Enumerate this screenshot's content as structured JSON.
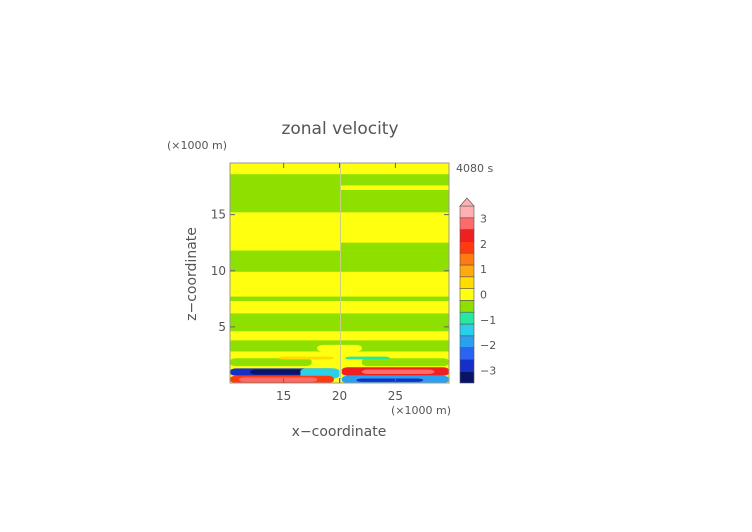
{
  "chart_data": {
    "type": "heatmap",
    "title": "zonal velocity",
    "xlabel": "x−coordinate",
    "ylabel": "z−coordinate",
    "x_unit": "(×1000 m)",
    "y_unit": "(×1000 m)",
    "time_label": "4080 s",
    "xlim": [
      10.2,
      29.8
    ],
    "ylim": [
      0,
      19.6
    ],
    "x_ticks": [
      {
        "value": 15,
        "label": "15"
      },
      {
        "value": 20,
        "label": "20"
      },
      {
        "value": 25,
        "label": "25"
      }
    ],
    "y_ticks": [
      {
        "value": 5,
        "label": "5"
      },
      {
        "value": 10,
        "label": "10"
      },
      {
        "value": 15,
        "label": "15"
      }
    ],
    "colorbar": {
      "min": -3.5,
      "max": 3.5,
      "step": 0.5,
      "extend_max": true,
      "colors": [
        "#0a1466",
        "#1430c8",
        "#2a64f0",
        "#2aa0f0",
        "#2ad0e8",
        "#28e8a0",
        "#8ee000",
        "#ffff10",
        "#ffdd00",
        "#ffaa10",
        "#ff7a10",
        "#ff3a10",
        "#ee2020",
        "#ff6a6a",
        "#ffb0b0"
      ],
      "ticks": [
        {
          "value": 3,
          "label": "3"
        },
        {
          "value": 2,
          "label": "2"
        },
        {
          "value": 1,
          "label": "1"
        },
        {
          "value": 0,
          "label": "0"
        },
        {
          "value": -1,
          "label": "−1"
        },
        {
          "value": -2,
          "label": "−2"
        },
        {
          "value": -3,
          "label": "−3"
        }
      ]
    },
    "bands": [
      {
        "z0": 18.6,
        "z1": 19.6,
        "v": 0.25
      },
      {
        "z0": 17.6,
        "z1": 18.6,
        "v": -0.25
      },
      {
        "z0": 17.2,
        "z1": 17.6,
        "v": 0.25,
        "side": "right"
      },
      {
        "z0": 15.2,
        "z1": 17.6,
        "v": -0.25,
        "side": "left"
      },
      {
        "z0": 15.2,
        "z1": 17.2,
        "v": -0.25,
        "side": "right"
      },
      {
        "z0": 12.5,
        "z1": 15.2,
        "v": 0.25
      },
      {
        "z0": 11.8,
        "z1": 12.5,
        "v": 0.25,
        "side": "left"
      },
      {
        "z0": 11.8,
        "z1": 12.5,
        "v": -0.25,
        "side": "right"
      },
      {
        "z0": 9.9,
        "z1": 11.8,
        "v": -0.25
      },
      {
        "z0": 7.7,
        "z1": 9.9,
        "v": 0.25
      },
      {
        "z0": 7.3,
        "z1": 7.7,
        "v": -0.25
      },
      {
        "z0": 6.2,
        "z1": 7.3,
        "v": 0.25
      },
      {
        "z0": 4.6,
        "z1": 6.2,
        "v": -0.25
      },
      {
        "z0": 3.8,
        "z1": 4.6,
        "v": 0.25
      },
      {
        "z0": 2.8,
        "z1": 3.8,
        "v": -0.25
      },
      {
        "z0": 1.3,
        "z1": 2.8,
        "v": 0.25
      }
    ],
    "features": [
      {
        "x0": 10.2,
        "x1": 17.5,
        "z0": 1.5,
        "z1": 2.2,
        "v": -0.25
      },
      {
        "x0": 22.0,
        "x1": 29.8,
        "z0": 1.5,
        "z1": 2.2,
        "v": -0.25
      },
      {
        "x0": 14.5,
        "x1": 19.5,
        "z0": 2.1,
        "z1": 2.35,
        "v": 0.75
      },
      {
        "x0": 20.5,
        "x1": 24.5,
        "z0": 2.1,
        "z1": 2.35,
        "v": -0.75
      },
      {
        "x0": 18.0,
        "x1": 22.0,
        "z0": 2.8,
        "z1": 3.4,
        "v": 0.25
      },
      {
        "x0": 10.2,
        "x1": 19.8,
        "z0": 0.65,
        "z1": 1.3,
        "v": -2.75
      },
      {
        "x0": 12.0,
        "x1": 18.5,
        "z0": 0.75,
        "z1": 1.2,
        "v": -3.25
      },
      {
        "x0": 16.5,
        "x1": 20.0,
        "z0": 0.4,
        "z1": 1.3,
        "v": -1.25
      },
      {
        "x0": 10.2,
        "x1": 19.5,
        "z0": 0.0,
        "z1": 0.65,
        "v": 2.25
      },
      {
        "x0": 11.0,
        "x1": 18.0,
        "z0": 0.1,
        "z1": 0.5,
        "v": 3.25
      },
      {
        "x0": 20.2,
        "x1": 29.8,
        "z0": 0.65,
        "z1": 1.4,
        "v": 2.75
      },
      {
        "x0": 22.0,
        "x1": 28.5,
        "z0": 0.8,
        "z1": 1.2,
        "v": 3.25
      },
      {
        "x0": 20.2,
        "x1": 29.8,
        "z0": 0.0,
        "z1": 0.65,
        "v": -1.75
      },
      {
        "x0": 21.5,
        "x1": 27.5,
        "z0": 0.1,
        "z1": 0.4,
        "v": -2.75
      }
    ]
  }
}
